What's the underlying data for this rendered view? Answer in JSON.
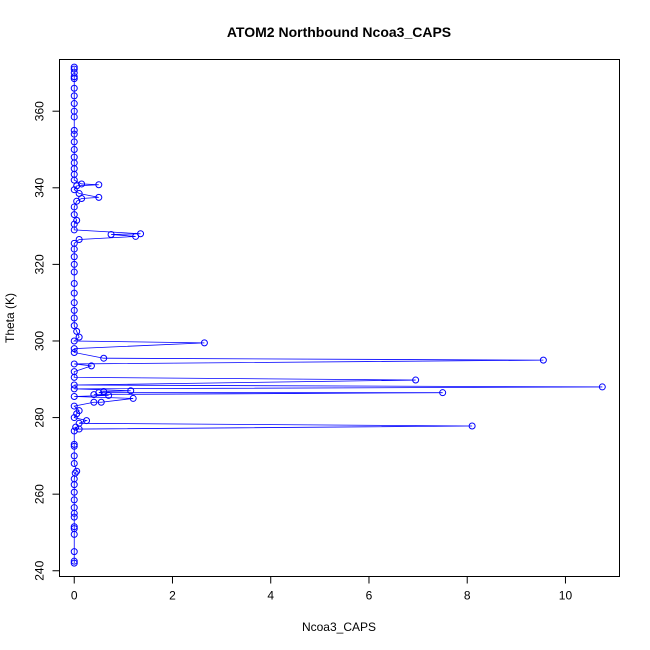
{
  "chart_data": {
    "type": "line",
    "title": "ATOM2 Northbound Ncoa3_CAPS",
    "xlabel": "Ncoa3_CAPS",
    "ylabel": "Theta (K)",
    "xlim": [
      -0.3,
      11.1
    ],
    "ylim": [
      238.5,
      373.5
    ],
    "xticks": [
      0,
      2,
      4,
      6,
      8,
      10
    ],
    "yticks": [
      240,
      260,
      280,
      300,
      320,
      340,
      360
    ],
    "xtick_labels": [
      "0",
      "2",
      "4",
      "6",
      "8",
      "10"
    ],
    "ytick_labels": [
      "240",
      "260",
      "280",
      "300",
      "320",
      "340",
      "360"
    ],
    "grid": false,
    "legend": "none",
    "series": [
      {
        "color": "#0000ff",
        "marker": "open-circle",
        "points": [
          [
            0.0,
            242.0
          ],
          [
            0.0,
            242.5
          ],
          [
            0.0,
            245.0
          ],
          [
            0.0,
            249.5
          ],
          [
            0.0,
            251.0
          ],
          [
            0.0,
            251.5
          ],
          [
            0.0,
            254.0
          ],
          [
            0.0,
            255.0
          ],
          [
            0.0,
            256.5
          ],
          [
            0.0,
            258.5
          ],
          [
            0.0,
            260.5
          ],
          [
            0.0,
            262.5
          ],
          [
            0.0,
            264.0
          ],
          [
            0.02,
            265.5
          ],
          [
            0.05,
            266.0
          ],
          [
            0.0,
            268.0
          ],
          [
            0.0,
            270.0
          ],
          [
            0.0,
            272.5
          ],
          [
            0.0,
            273.0
          ],
          [
            0.0,
            276.5
          ],
          [
            0.03,
            277.5
          ],
          [
            0.1,
            277.0
          ],
          [
            8.1,
            277.8
          ],
          [
            0.1,
            278.5
          ],
          [
            0.25,
            279.2
          ],
          [
            0.0,
            280.0
          ],
          [
            0.05,
            281.0
          ],
          [
            0.1,
            281.8
          ],
          [
            0.0,
            283.0
          ],
          [
            0.4,
            284.0
          ],
          [
            0.55,
            284.0
          ],
          [
            1.2,
            285.0
          ],
          [
            0.0,
            285.5
          ],
          [
            0.7,
            285.8
          ],
          [
            0.4,
            286.0
          ],
          [
            7.5,
            286.5
          ],
          [
            0.5,
            286.5
          ],
          [
            0.6,
            286.8
          ],
          [
            1.15,
            287.0
          ],
          [
            0.0,
            287.5
          ],
          [
            10.75,
            288.0
          ],
          [
            0.0,
            288.5
          ],
          [
            6.95,
            289.8
          ],
          [
            0.0,
            290.5
          ],
          [
            0.0,
            292.0
          ],
          [
            0.35,
            293.5
          ],
          [
            0.0,
            294.0
          ],
          [
            9.55,
            295.0
          ],
          [
            0.6,
            295.5
          ],
          [
            0.0,
            297.0
          ],
          [
            0.0,
            298.0
          ],
          [
            2.65,
            299.5
          ],
          [
            0.0,
            300.0
          ],
          [
            0.1,
            301.0
          ],
          [
            0.05,
            302.5
          ],
          [
            0.0,
            304.0
          ],
          [
            0.0,
            306.0
          ],
          [
            0.0,
            308.0
          ],
          [
            0.0,
            310.0
          ],
          [
            0.0,
            312.5
          ],
          [
            0.0,
            315.0
          ],
          [
            0.0,
            318.0
          ],
          [
            0.0,
            320.0
          ],
          [
            0.0,
            322.0
          ],
          [
            0.0,
            324.0
          ],
          [
            0.0,
            325.5
          ],
          [
            0.1,
            326.5
          ],
          [
            1.25,
            327.3
          ],
          [
            0.75,
            327.8
          ],
          [
            1.35,
            328.0
          ],
          [
            0.0,
            329.0
          ],
          [
            0.0,
            330.5
          ],
          [
            0.05,
            331.5
          ],
          [
            0.0,
            333.0
          ],
          [
            0.0,
            335.0
          ],
          [
            0.05,
            336.5
          ],
          [
            0.15,
            337.2
          ],
          [
            0.5,
            337.5
          ],
          [
            0.1,
            338.5
          ],
          [
            0.0,
            339.5
          ],
          [
            0.05,
            340.5
          ],
          [
            0.5,
            340.8
          ],
          [
            0.15,
            341.0
          ],
          [
            0.0,
            342.0
          ],
          [
            0.0,
            343.5
          ],
          [
            0.0,
            345.0
          ],
          [
            0.0,
            346.5
          ],
          [
            0.0,
            348.0
          ],
          [
            0.0,
            350.0
          ],
          [
            0.0,
            352.0
          ],
          [
            0.0,
            354.0
          ],
          [
            0.0,
            355.0
          ],
          [
            0.0,
            358.5
          ],
          [
            0.0,
            360.0
          ],
          [
            0.0,
            362.0
          ],
          [
            0.0,
            364.0
          ],
          [
            0.0,
            366.0
          ],
          [
            0.0,
            368.5
          ],
          [
            0.0,
            369.0
          ],
          [
            0.0,
            370.0
          ],
          [
            0.0,
            371.0
          ],
          [
            0.0,
            371.5
          ]
        ]
      }
    ]
  }
}
